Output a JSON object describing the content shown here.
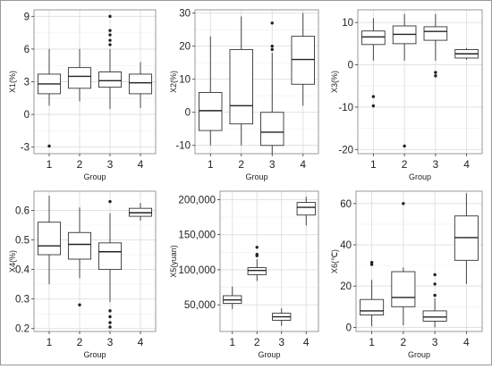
{
  "chart_data": [
    {
      "type": "boxplot",
      "xlabel": "Group",
      "ylabel": "X1(%)",
      "categories": [
        "1",
        "2",
        "3",
        "4"
      ],
      "ylim": [
        -3.6,
        9.6
      ],
      "yticks": [
        -3,
        0,
        3,
        6,
        9
      ],
      "ytick_labels": [
        "-3",
        "0",
        "3",
        "6",
        "9"
      ],
      "grid": true,
      "boxes": [
        {
          "group": "1",
          "min": 0.8,
          "q1": 1.9,
          "median": 2.8,
          "q3": 3.7,
          "max": 6.0,
          "outliers": [
            -2.9
          ]
        },
        {
          "group": "2",
          "min": 1.2,
          "q1": 2.4,
          "median": 3.5,
          "q3": 4.3,
          "max": 6.0,
          "outliers": []
        },
        {
          "group": "3",
          "min": 0.5,
          "q1": 2.5,
          "median": 3.1,
          "q3": 3.9,
          "max": 6.0,
          "outliers": [
            9.0,
            7.7,
            7.3,
            6.8,
            6.4
          ]
        },
        {
          "group": "4",
          "min": 0.6,
          "q1": 1.9,
          "median": 2.9,
          "q3": 3.7,
          "max": 4.8,
          "outliers": []
        }
      ]
    },
    {
      "type": "boxplot",
      "xlabel": "Group",
      "ylabel": "X2(%)",
      "categories": [
        "1",
        "2",
        "3",
        "4"
      ],
      "ylim": [
        -12.5,
        31
      ],
      "yticks": [
        -10,
        0,
        10,
        20,
        30
      ],
      "ytick_labels": [
        "-10",
        "0",
        "10",
        "20",
        "30"
      ],
      "grid": true,
      "boxes": [
        {
          "group": "1",
          "min": -10.0,
          "q1": -5.5,
          "median": 0.5,
          "q3": 6.0,
          "max": 23.0,
          "outliers": []
        },
        {
          "group": "2",
          "min": -10.0,
          "q1": -3.5,
          "median": 2.0,
          "q3": 19.0,
          "max": 29.0,
          "outliers": []
        },
        {
          "group": "3",
          "min": -12.5,
          "q1": -10.0,
          "median": -6.0,
          "q3": 0.0,
          "max": 18.0,
          "outliers": [
            27.0,
            20.0,
            19.0
          ]
        },
        {
          "group": "4",
          "min": 2.0,
          "q1": 8.5,
          "median": 16.0,
          "q3": 23.0,
          "max": 30.0,
          "outliers": []
        }
      ]
    },
    {
      "type": "boxplot",
      "xlabel": "Group",
      "ylabel": "X3(%)",
      "categories": [
        "1",
        "2",
        "3",
        "4"
      ],
      "ylim": [
        -21,
        13
      ],
      "yticks": [
        -20,
        -10,
        0,
        10
      ],
      "ytick_labels": [
        "-20",
        "-10",
        "0",
        "10"
      ],
      "grid": true,
      "boxes": [
        {
          "group": "1",
          "min": 1.0,
          "q1": 4.8,
          "median": 6.6,
          "q3": 8.0,
          "max": 11.0,
          "outliers": [
            -7.5,
            -9.7
          ]
        },
        {
          "group": "2",
          "min": 1.0,
          "q1": 5.0,
          "median": 7.2,
          "q3": 9.2,
          "max": 12.0,
          "outliers": [
            -19.2
          ]
        },
        {
          "group": "3",
          "min": 1.0,
          "q1": 5.8,
          "median": 7.9,
          "q3": 9.0,
          "max": 12.0,
          "outliers": [
            -1.8,
            -2.6
          ]
        },
        {
          "group": "4",
          "min": 1.2,
          "q1": 1.6,
          "median": 2.6,
          "q3": 3.6,
          "max": 4.0,
          "outliers": []
        }
      ]
    },
    {
      "type": "boxplot",
      "xlabel": "Group",
      "ylabel": "X4(%)",
      "categories": [
        "1",
        "2",
        "3",
        "4"
      ],
      "ylim": [
        0.19,
        0.665
      ],
      "yticks": [
        0.2,
        0.3,
        0.4,
        0.5,
        0.6
      ],
      "ytick_labels": [
        "0.2",
        "0.3",
        "0.4",
        "0.5",
        "0.6"
      ],
      "grid": true,
      "boxes": [
        {
          "group": "1",
          "min": 0.35,
          "q1": 0.45,
          "median": 0.48,
          "q3": 0.56,
          "max": 0.65,
          "outliers": []
        },
        {
          "group": "2",
          "min": 0.37,
          "q1": 0.435,
          "median": 0.485,
          "q3": 0.525,
          "max": 0.61,
          "outliers": [
            0.28
          ]
        },
        {
          "group": "3",
          "min": 0.29,
          "q1": 0.4,
          "median": 0.46,
          "q3": 0.49,
          "max": 0.59,
          "outliers": [
            0.63,
            0.26,
            0.24,
            0.22,
            0.205
          ]
        },
        {
          "group": "4",
          "min": 0.565,
          "q1": 0.58,
          "median": 0.592,
          "q3": 0.607,
          "max": 0.625,
          "outliers": []
        }
      ]
    },
    {
      "type": "boxplot",
      "xlabel": "Group",
      "ylabel": "X5(yuan)",
      "categories": [
        "1",
        "2",
        "3",
        "4"
      ],
      "ylim": [
        12000,
        212000
      ],
      "yticks": [
        50000,
        100000,
        150000,
        200000
      ],
      "ytick_labels": [
        "50,000",
        "100,000",
        "150,000",
        "200,000"
      ],
      "grid": true,
      "boxes": [
        {
          "group": "1",
          "min": 44000,
          "q1": 52000,
          "median": 57000,
          "q3": 63000,
          "max": 76000,
          "outliers": []
        },
        {
          "group": "2",
          "min": 84000,
          "q1": 93000,
          "median": 99000,
          "q3": 103000,
          "max": 115000,
          "outliers": [
            132000,
            122000,
            120000
          ]
        },
        {
          "group": "3",
          "min": 20000,
          "q1": 28000,
          "median": 33000,
          "q3": 38000,
          "max": 45000,
          "outliers": []
        },
        {
          "group": "4",
          "min": 163000,
          "q1": 178000,
          "median": 189000,
          "q3": 196000,
          "max": 204000,
          "outliers": []
        }
      ]
    },
    {
      "type": "boxplot",
      "xlabel": "Group",
      "ylabel": "X6(℃)",
      "categories": [
        "1",
        "2",
        "3",
        "4"
      ],
      "ylim": [
        -2,
        66
      ],
      "yticks": [
        0,
        20,
        40,
        60
      ],
      "ytick_labels": [
        "0",
        "20",
        "40",
        "60"
      ],
      "grid": true,
      "boxes": [
        {
          "group": "1",
          "min": 0.5,
          "q1": 6.0,
          "median": 8.0,
          "q3": 13.5,
          "max": 23.0,
          "outliers": [
            31.5,
            30.5
          ]
        },
        {
          "group": "2",
          "min": 1.0,
          "q1": 10.0,
          "median": 14.5,
          "q3": 27.0,
          "max": 29.0,
          "outliers": [
            60.0
          ]
        },
        {
          "group": "3",
          "min": 0.0,
          "q1": 3.0,
          "median": 5.0,
          "q3": 8.0,
          "max": 14.0,
          "outliers": [
            25.5,
            21.0,
            15.5
          ]
        },
        {
          "group": "4",
          "min": 21.0,
          "q1": 32.5,
          "median": 43.5,
          "q3": 54.0,
          "max": 65.0,
          "outliers": []
        }
      ]
    }
  ]
}
